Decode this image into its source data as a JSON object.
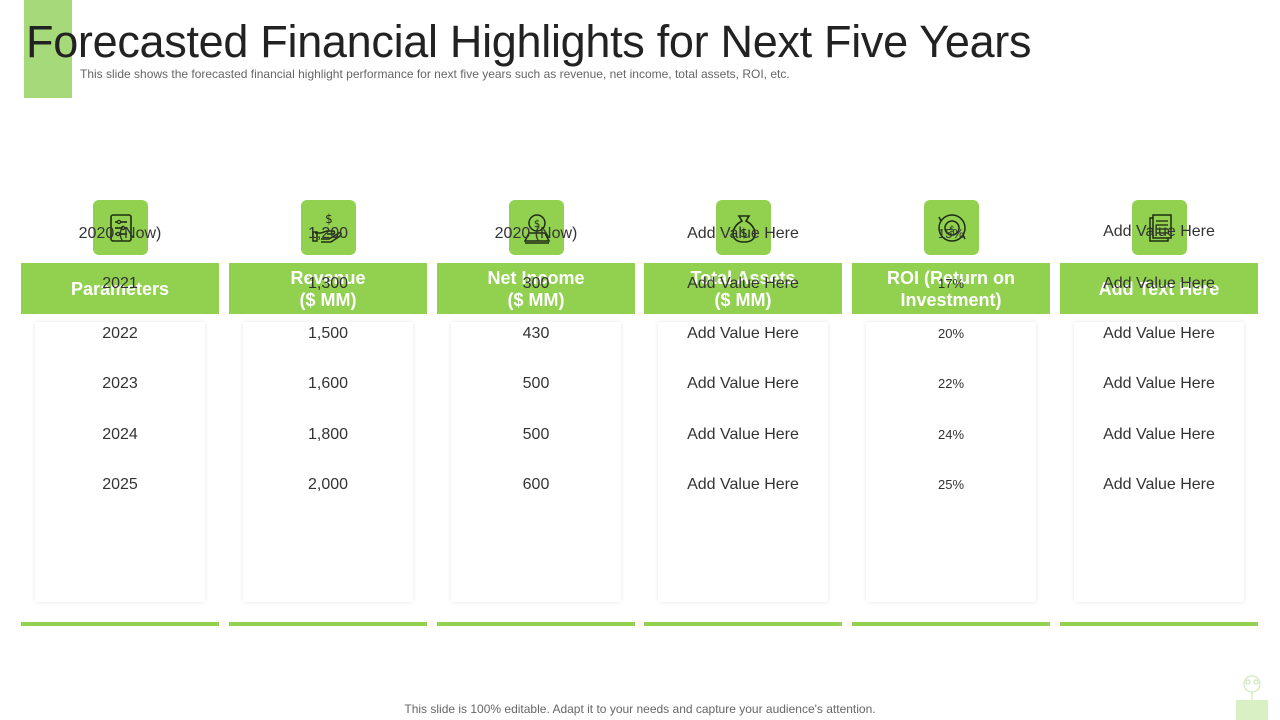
{
  "title": "Forecasted Financial Highlights for Next Five Years",
  "subtitle": "This slide shows the forecasted financial highlight performance  for next five  years such as revenue,  net income, total assets, ROI, etc.",
  "footer": "This slide is 100% editable. Adapt it to your needs and capture your audience's attention.",
  "colors": {
    "accent": "#92d050",
    "accent_light": "#a6d97a"
  },
  "columns": [
    {
      "icon": "checklist-icon",
      "header": [
        "Parameters"
      ],
      "values": [
        "2020 (Now)",
        "2021",
        "2022",
        "2023",
        "2024",
        "2025"
      ]
    },
    {
      "icon": "hand-dollar-icon",
      "header": [
        "Revenue",
        "($ MM)"
      ],
      "values": [
        "1,200",
        "1,300",
        "1,500",
        "1,600",
        "1,800",
        "2,000"
      ]
    },
    {
      "icon": "money-bag-stand-icon",
      "header": [
        "Net Income",
        "($ MM)"
      ],
      "values": [
        "2020 (Now)",
        "300",
        "430",
        "500",
        "500",
        "600"
      ]
    },
    {
      "icon": "money-bag-icon",
      "header": [
        "Total Assets",
        "($ MM)"
      ],
      "values": [
        "Add Value Here",
        "Add Value Here",
        "Add Value Here",
        "Add Value Here",
        "Add Value Here",
        "Add Value Here"
      ]
    },
    {
      "icon": "coin-cycle-icon",
      "header": [
        "ROI (Return on",
        "Investment)"
      ],
      "values": [
        "15%",
        "17%",
        "20%",
        "22%",
        "24%",
        "25%"
      ]
    },
    {
      "icon": "documents-icon",
      "header": [
        "Add Text Here"
      ],
      "values": [
        "Add Value Here",
        "Add Value Here",
        "Add Value Here",
        "Add Value Here",
        "Add Value Here",
        "Add Value Here"
      ]
    }
  ]
}
